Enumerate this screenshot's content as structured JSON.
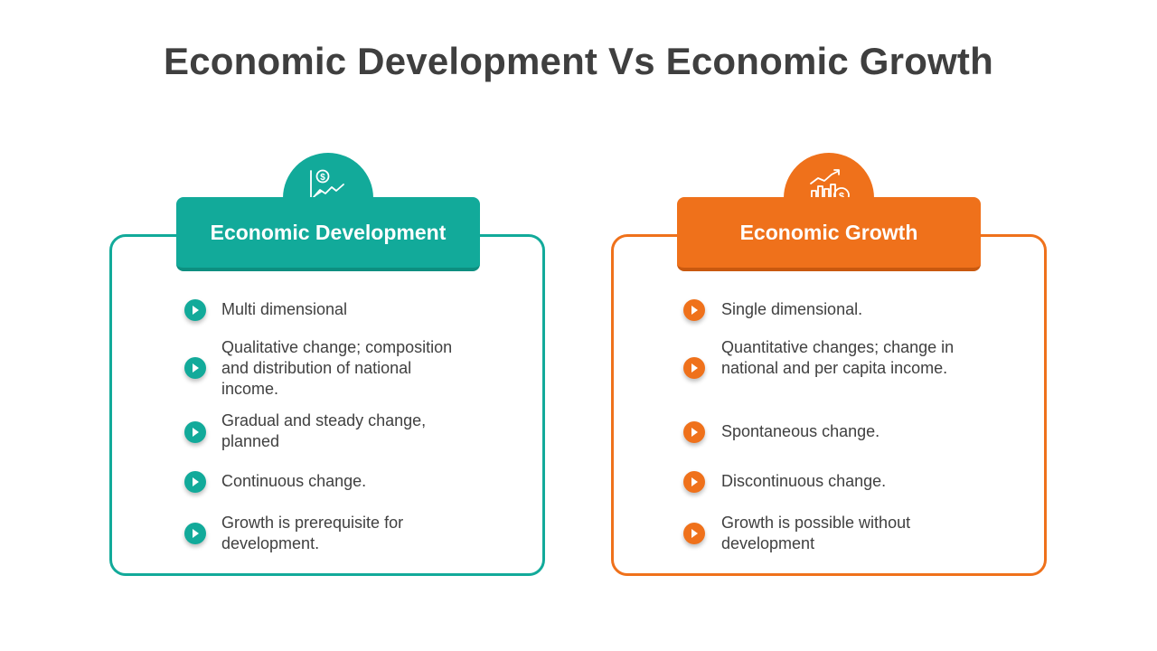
{
  "title": "Economic Development Vs Economic Growth",
  "colors": {
    "teal": "#12aa9a",
    "orange": "#ef711b",
    "text": "#404040"
  },
  "left": {
    "heading": "Economic Development",
    "icon": "chart-dollar-icon",
    "items": [
      "Multi dimensional",
      "Qualitative change; composition and distribution of national income.",
      "Gradual and steady change, planned",
      "Continuous change.",
      "Growth is prerequisite for development."
    ]
  },
  "right": {
    "heading": "Economic Growth",
    "icon": "bar-chart-coin-icon",
    "items": [
      "Single dimensional.",
      "Quantitative changes; change in national and per capita income.",
      "Spontaneous change.",
      "Discontinuous change.",
      "Growth is possible without development"
    ]
  }
}
